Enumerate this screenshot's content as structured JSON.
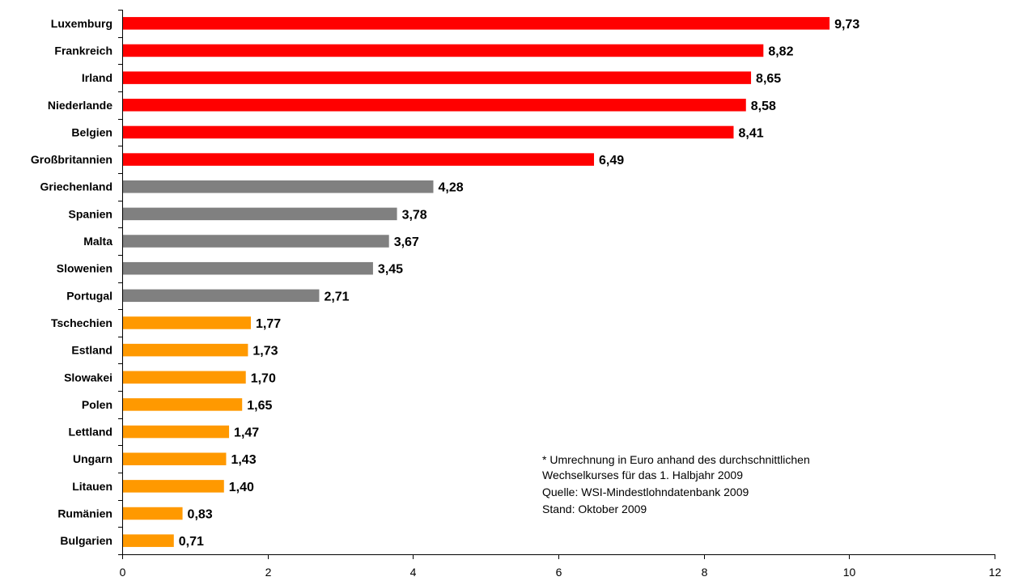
{
  "chart_data": {
    "type": "bar",
    "orientation": "horizontal",
    "categories": [
      "Luxemburg",
      "Frankreich",
      "Irland",
      "Niederlande",
      "Belgien",
      "Großbritannien",
      "Griechenland",
      "Spanien",
      "Malta",
      "Slowenien",
      "Portugal",
      "Tschechien",
      "Estland",
      "Slowakei",
      "Polen",
      "Lettland",
      "Ungarn",
      "Litauen",
      "Rumänien",
      "Bulgarien"
    ],
    "values": [
      9.73,
      8.82,
      8.65,
      8.58,
      8.41,
      6.49,
      4.28,
      3.78,
      3.67,
      3.45,
      2.71,
      1.77,
      1.73,
      1.7,
      1.65,
      1.47,
      1.43,
      1.4,
      0.83,
      0.71
    ],
    "value_labels": [
      "9,73",
      "8,82",
      "8,65",
      "8,58",
      "8,41",
      "6,49",
      "4,28",
      "3,78",
      "3,67",
      "3,45",
      "2,71",
      "1,77",
      "1,73",
      "1,70",
      "1,65",
      "1,47",
      "1,43",
      "1,40",
      "0,83",
      "0,71"
    ],
    "bar_colors": [
      "#ff0000",
      "#ff0000",
      "#ff0000",
      "#ff0000",
      "#ff0000",
      "#ff0000",
      "#808080",
      "#808080",
      "#808080",
      "#808080",
      "#808080",
      "#ff9900",
      "#ff9900",
      "#ff9900",
      "#ff9900",
      "#ff9900",
      "#ff9900",
      "#ff9900",
      "#ff9900",
      "#ff9900"
    ],
    "xlim": [
      0,
      12
    ],
    "xticks": [
      0,
      2,
      4,
      6,
      8,
      10,
      12
    ],
    "xtick_labels": [
      "0",
      "2",
      "4",
      "6",
      "8",
      "10",
      "12"
    ],
    "grid": false,
    "legend": false,
    "title": "",
    "xlabel": "",
    "ylabel": ""
  },
  "note": {
    "lines": [
      "* Umrechnung in Euro anhand des durchschnittlichen",
      "Wechselkurses für das 1. Halbjahr 2009",
      "Quelle: WSI-Mindestlohndatenbank 2009",
      "Stand: Oktober 2009"
    ]
  }
}
